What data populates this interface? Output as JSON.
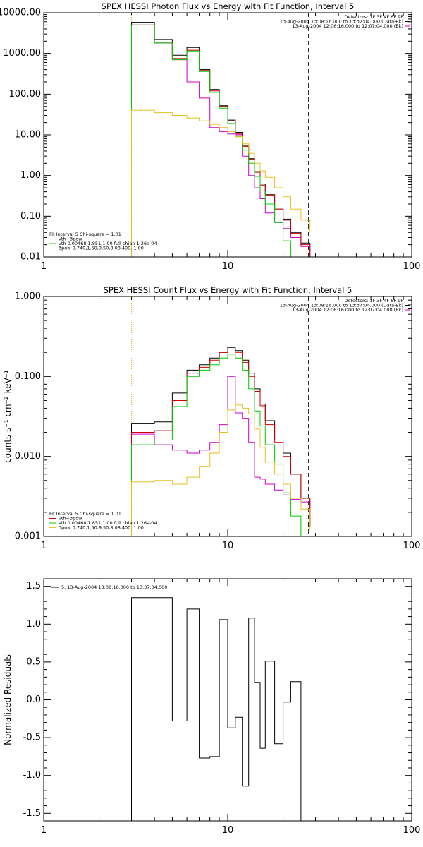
{
  "chart_data": [
    {
      "type": "line",
      "title": "SPEX HESSI Photon Flux vs Energy with Fit Function, Interval 5",
      "ylabel": "",
      "xscale": "log",
      "yscale": "log",
      "xlim": [
        1,
        100
      ],
      "ylim": [
        0.01,
        10000
      ],
      "xticks": [
        1,
        10,
        100
      ],
      "xtick_labels": [
        "1",
        "10",
        "100"
      ],
      "yticks": [
        0.01,
        0.1,
        1,
        10,
        100,
        1000,
        10000
      ],
      "ytick_labels": [
        "0.01",
        "0.10",
        "1.00",
        "10.00",
        "100.00",
        "1000.00",
        "10000.00"
      ],
      "vlines": [
        {
          "x": 3.0,
          "style": "dotted",
          "color": "#000000"
        },
        {
          "x": 3.0,
          "style": "dotted",
          "color": "#e8c020"
        },
        {
          "x": 27.5,
          "style": "dashed",
          "color": "#000000"
        }
      ],
      "header_lines": [
        "Detectors: 1F 3F 4F 6F 9F",
        "13-Aug-2004 13:08:16.000 to 13:37:04.000 (Data-Bk)",
        "13-Aug-2004 12:06:16.000 to 12:07:04.000 (Bk)"
      ],
      "header_line_colors": [
        "#000000",
        "#000000",
        "#cc00cc"
      ],
      "legend": {
        "title": "Fit Interval 5   Chi-square = 1.01",
        "entries": [
          {
            "label": "vth+3pow",
            "color": "#cc0000"
          },
          {
            "label": "vth 0.00468,1.851,1.00   full chian 1.26e-04",
            "color": "#00cc00"
          },
          {
            "label": "3pow 0.740,1.50,9.50,8.08,400.,1.00",
            "color": "#e8c020"
          }
        ]
      },
      "x_edges": [
        3,
        4,
        5,
        6,
        7,
        8,
        9,
        10,
        11,
        12,
        13,
        14,
        15,
        16,
        18,
        20,
        22,
        25,
        28
      ],
      "series": [
        {
          "name": "data",
          "color": "#000000",
          "values": [
            5800,
            2200,
            900,
            1400,
            400,
            130,
            52,
            23,
            11.5,
            5.5,
            2.6,
            1.25,
            0.62,
            0.34,
            0.16,
            0.085,
            0.04,
            0.022,
            0.011
          ]
        },
        {
          "name": "background",
          "color": "#cc00cc",
          "values": [
            5000,
            1800,
            700,
            200,
            80,
            15,
            12,
            10.5,
            10,
            3.0,
            1.0,
            0.5,
            0.27,
            0.12,
            0.07,
            0.05,
            0.03,
            0.018,
            0.005
          ]
        },
        {
          "name": "vth+3pow",
          "color": "#cc0000",
          "values": [
            5000,
            1900,
            750,
            1200,
            380,
            120,
            50,
            22,
            10.5,
            5.2,
            2.5,
            1.2,
            0.58,
            0.33,
            0.15,
            0.08,
            0.038,
            0.02,
            0.01
          ]
        },
        {
          "name": "vth",
          "color": "#00cc00",
          "values": [
            5000,
            1800,
            700,
            1150,
            360,
            110,
            45,
            19,
            9,
            4.2,
            2.0,
            0.95,
            0.42,
            0.2,
            0.07,
            0.025,
            0.009
          ]
        },
        {
          "name": "3pow",
          "color": "#e8c020",
          "values": [
            40,
            35,
            30,
            26,
            22,
            18,
            15,
            12,
            9,
            6,
            3.5,
            2.0,
            1.3,
            0.9,
            0.5,
            0.3,
            0.15,
            0.08,
            0.04
          ]
        }
      ]
    },
    {
      "type": "line",
      "title": "SPEX HESSI Count Flux vs Energy with Fit Function, Interval 5",
      "ylabel": "counts s⁻¹ cm⁻² keV⁻¹",
      "xscale": "log",
      "yscale": "log",
      "xlim": [
        1,
        100
      ],
      "ylim": [
        0.001,
        1.0
      ],
      "xticks": [
        1,
        10,
        100
      ],
      "xtick_labels": [
        "1",
        "10",
        "100"
      ],
      "yticks": [
        0.001,
        0.01,
        0.1,
        1.0
      ],
      "ytick_labels": [
        "0.001",
        "0.010",
        "0.100",
        "1.000"
      ],
      "vlines": [
        {
          "x": 3.0,
          "style": "dotted",
          "color": "#000000"
        },
        {
          "x": 3.0,
          "style": "dotted",
          "color": "#e8c020"
        },
        {
          "x": 27.5,
          "style": "dashed",
          "color": "#000000"
        }
      ],
      "header_lines": [
        "Detectors: 1F 3F 4F 6F 9F",
        "13-Aug-2004 13:08:16.000 to 13:37:04.000 (Data-Bk)",
        "13-Aug-2004 12:06:16.000 to 12:07:04.000 (Bk)"
      ],
      "header_line_colors": [
        "#000000",
        "#000000",
        "#cc00cc"
      ],
      "legend": {
        "title": "Fit Interval 5   Chi-square = 1.01",
        "entries": [
          {
            "label": "vth+3pow",
            "color": "#cc0000"
          },
          {
            "label": "vth 0.00468,1.851,1.00   full chian 1.26e-04",
            "color": "#00cc00"
          },
          {
            "label": "3pow 0.740,1.50,9.50,8.08,400.,1.00",
            "color": "#e8c020"
          }
        ]
      },
      "x_edges": [
        3,
        4,
        5,
        6,
        7,
        8,
        9,
        10,
        11,
        12,
        13,
        14,
        15,
        16,
        18,
        20,
        22,
        25,
        28
      ],
      "series": [
        {
          "name": "data",
          "color": "#000000",
          "values": [
            0.026,
            0.027,
            0.062,
            0.12,
            0.14,
            0.17,
            0.2,
            0.23,
            0.21,
            0.16,
            0.11,
            0.07,
            0.045,
            0.028,
            0.016,
            0.011,
            0.006,
            0.003,
            0.0014
          ]
        },
        {
          "name": "background",
          "color": "#cc00cc",
          "values": [
            0.019,
            0.014,
            0.012,
            0.011,
            0.012,
            0.015,
            0.025,
            0.1,
            0.035,
            0.03,
            0.015,
            0.0055,
            0.0052,
            0.0045,
            0.0038,
            0.0033,
            0.0029,
            0.0027,
            0.0013
          ]
        },
        {
          "name": "vth+3pow",
          "color": "#cc0000",
          "values": [
            0.02,
            0.021,
            0.05,
            0.11,
            0.13,
            0.16,
            0.2,
            0.22,
            0.2,
            0.15,
            0.1,
            0.065,
            0.043,
            0.025,
            0.015,
            0.01,
            0.006,
            0.003,
            0.0013
          ]
        },
        {
          "name": "vth",
          "color": "#00cc00",
          "values": [
            0.014,
            0.016,
            0.042,
            0.1,
            0.12,
            0.14,
            0.17,
            0.19,
            0.17,
            0.12,
            0.07,
            0.037,
            0.024,
            0.014,
            0.008,
            0.0035,
            0.0018
          ]
        },
        {
          "name": "3pow",
          "color": "#e8c020",
          "values": [
            0.0048,
            0.005,
            0.0045,
            0.0055,
            0.0075,
            0.011,
            0.02,
            0.038,
            0.044,
            0.04,
            0.034,
            0.022,
            0.013,
            0.0085,
            0.006,
            0.0045,
            0.003,
            0.0022,
            0.0012
          ]
        }
      ]
    },
    {
      "type": "line",
      "title": "",
      "ylabel": "Normalized Residuals",
      "xscale": "log",
      "yscale": "linear",
      "xlim": [
        1,
        100
      ],
      "ylim": [
        -1.6,
        1.6
      ],
      "xticks": [
        1,
        10,
        100
      ],
      "xtick_labels": [
        "1",
        "10",
        "100"
      ],
      "yticks": [
        -1.5,
        -1.0,
        -0.5,
        0.0,
        0.5,
        1.0,
        1.5
      ],
      "ytick_labels": [
        "-1.5",
        "-1.0",
        "-0.5",
        "0.0",
        "0.5",
        "1.0",
        "1.5"
      ],
      "legend": {
        "title": "",
        "entries": [
          {
            "label": "5. 13-Aug-2004 13:08:16.000 to 13:37:04.000",
            "color": "#000000"
          }
        ]
      },
      "x_edges": [
        3,
        4,
        5,
        6,
        7,
        8,
        9,
        10,
        11,
        12,
        13,
        14,
        15,
        16,
        18,
        20,
        22,
        25,
        28
      ],
      "series": [
        {
          "name": "residuals",
          "color": "#000000",
          "values": [
            1.35,
            1.35,
            -0.28,
            1.2,
            -0.77,
            -0.75,
            1.06,
            -0.37,
            -0.23,
            -1.14,
            1.08,
            0.23,
            -0.64,
            0.51,
            -0.58,
            -0.03,
            0.24,
            -1.6
          ]
        }
      ]
    }
  ]
}
